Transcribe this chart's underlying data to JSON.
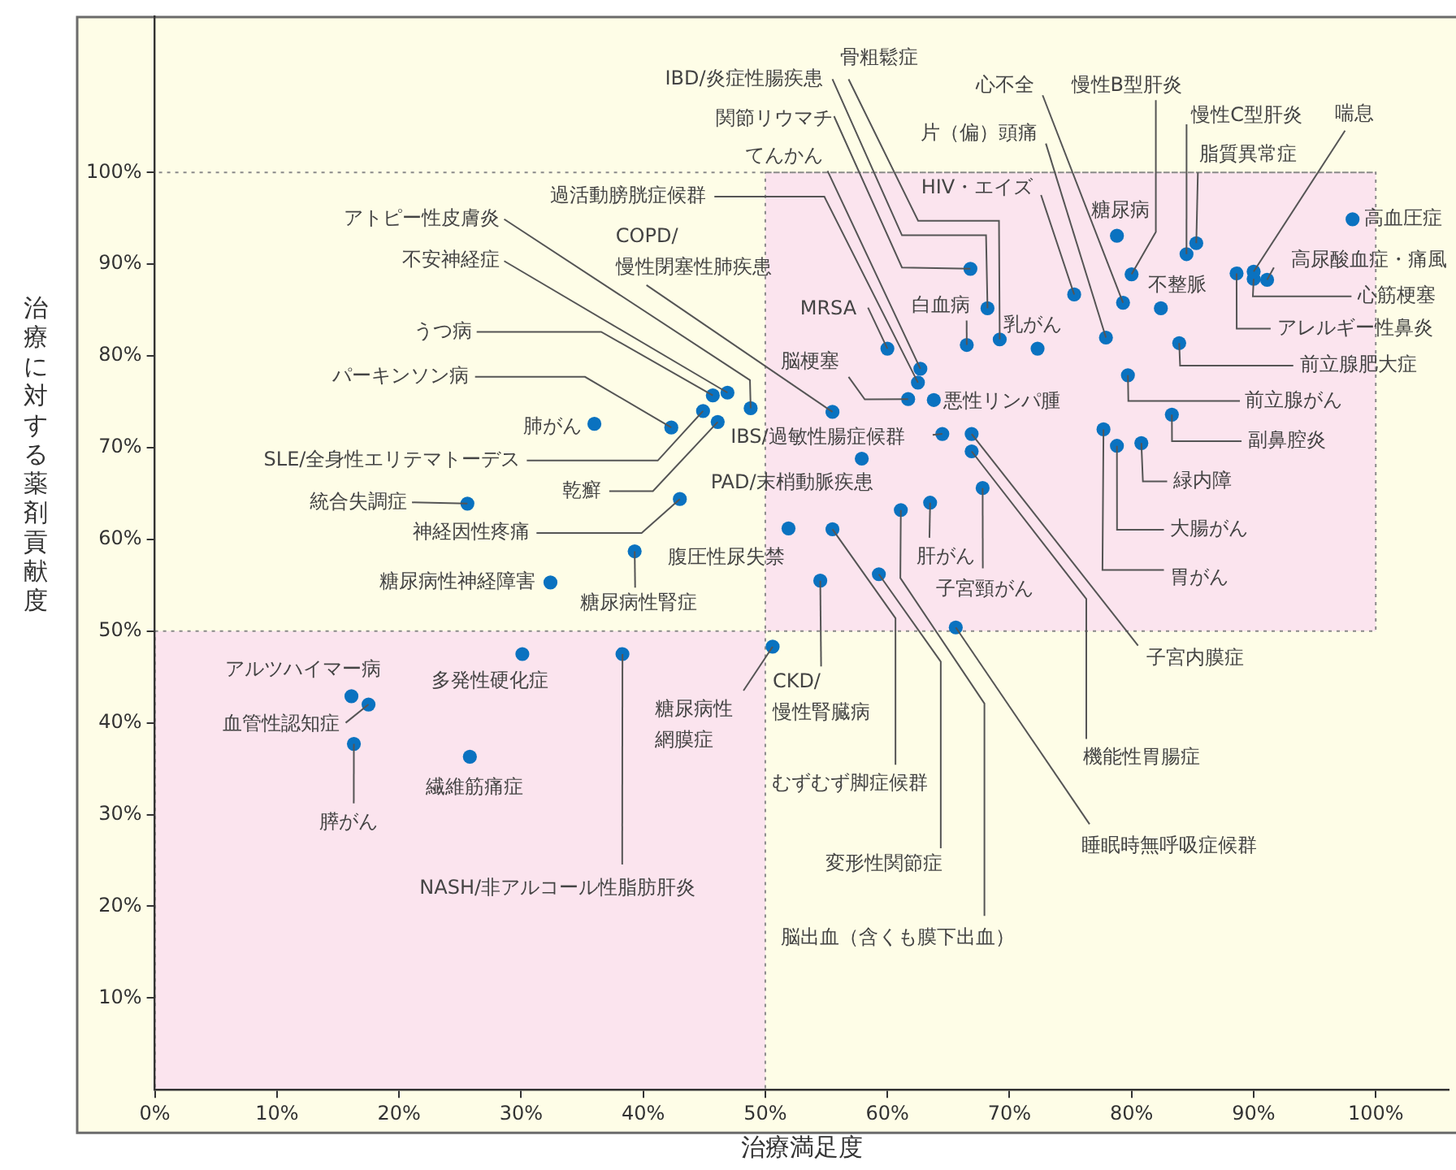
{
  "chart_data": {
    "type": "scatter",
    "xlabel": "治療満足度",
    "ylabel": "治療に対する薬剤貢献度",
    "xlim": [
      0,
      106
    ],
    "ylim": [
      0,
      117
    ],
    "xticks": [
      {
        "value": 0,
        "label": "0%"
      },
      {
        "value": 10,
        "label": "10%"
      },
      {
        "value": 20,
        "label": "20%"
      },
      {
        "value": 30,
        "label": "30%"
      },
      {
        "value": 40,
        "label": "40%"
      },
      {
        "value": 50,
        "label": "50%"
      },
      {
        "value": 60,
        "label": "60%"
      },
      {
        "value": 70,
        "label": "70%"
      },
      {
        "value": 80,
        "label": "80%"
      },
      {
        "value": 90,
        "label": "90%"
      },
      {
        "value": 100,
        "label": "100%"
      }
    ],
    "yticks": [
      {
        "value": 10,
        "label": "10%"
      },
      {
        "value": 20,
        "label": "20%"
      },
      {
        "value": 30,
        "label": "30%"
      },
      {
        "value": 40,
        "label": "40%"
      },
      {
        "value": 50,
        "label": "50%"
      },
      {
        "value": 60,
        "label": "60%"
      },
      {
        "value": 70,
        "label": "70%"
      },
      {
        "value": 80,
        "label": "80%"
      },
      {
        "value": 90,
        "label": "90%"
      },
      {
        "value": 100,
        "label": "100%"
      }
    ],
    "marker": "circle",
    "color": "#0a72c0",
    "x": [
      98.1,
      91.1,
      90.0,
      88.6,
      90.0,
      85.3,
      84.5,
      80.0,
      79.3,
      77.9,
      78.8,
      82.4,
      75.3,
      69.2,
      68.2,
      66.8,
      62.7,
      62.5,
      55.5,
      48.8,
      46.9,
      45.7,
      42.3,
      36.0,
      44.9,
      46.1,
      25.6,
      43.0,
      32.4,
      39.3,
      51.9,
      64.5,
      57.9,
      61.7,
      63.8,
      60.0,
      66.5,
      72.3,
      83.9,
      79.7,
      83.3,
      80.8,
      78.8,
      77.7,
      66.9,
      66.9,
      67.8,
      63.5,
      65.6,
      61.1,
      59.3,
      55.5,
      54.5,
      50.6,
      38.3,
      30.1,
      16.1,
      17.5,
      16.3,
      25.8
    ],
    "values": [
      94.9,
      88.3,
      88.4,
      89.0,
      89.2,
      92.3,
      91.1,
      88.9,
      85.8,
      82.0,
      93.1,
      85.2,
      86.7,
      81.8,
      85.2,
      89.5,
      78.6,
      77.1,
      73.9,
      74.3,
      76.0,
      75.7,
      72.2,
      72.6,
      74.0,
      72.8,
      63.9,
      64.4,
      55.3,
      58.7,
      61.2,
      71.5,
      68.8,
      75.3,
      75.2,
      80.8,
      81.2,
      80.8,
      81.4,
      77.9,
      73.6,
      70.5,
      70.2,
      72.0,
      71.5,
      69.6,
      65.6,
      64.0,
      50.4,
      63.2,
      56.2,
      61.1,
      55.5,
      48.3,
      47.5,
      47.5,
      42.9,
      42.0,
      37.7,
      36.3
    ],
    "annotations": [
      {
        "text": "高血圧症",
        "x": 98.1,
        "y": 94.9
      },
      {
        "text": "高尿酸血症・痛風",
        "x": 91.1,
        "y": 88.3
      },
      {
        "text": "心筋梗塞",
        "x": 90.0,
        "y": 88.4
      },
      {
        "text": "アレルギー性鼻炎",
        "x": 88.6,
        "y": 89.0
      },
      {
        "text": "喘息",
        "x": 90.0,
        "y": 89.2
      },
      {
        "text": "脂質異常症",
        "x": 85.3,
        "y": 92.3
      },
      {
        "text": "慢性C型肝炎",
        "x": 84.5,
        "y": 91.1
      },
      {
        "text": "慢性B型肝炎",
        "x": 80.0,
        "y": 88.9
      },
      {
        "text": "心不全",
        "x": 79.3,
        "y": 85.8
      },
      {
        "text": "片（偏）頭痛",
        "x": 77.9,
        "y": 82.0
      },
      {
        "text": "糖尿病",
        "x": 78.8,
        "y": 93.1
      },
      {
        "text": "不整脈",
        "x": 82.4,
        "y": 85.2
      },
      {
        "text": "HIV・エイズ",
        "x": 75.3,
        "y": 86.7
      },
      {
        "text": "骨粗鬆症",
        "x": 69.2,
        "y": 81.8
      },
      {
        "text": "IBD/炎症性腸疾患",
        "x": 68.2,
        "y": 85.2
      },
      {
        "text": "関節リウマチ",
        "x": 66.8,
        "y": 89.5
      },
      {
        "text": "てんかん",
        "x": 62.7,
        "y": 78.6
      },
      {
        "text": "過活動膀胱症候群",
        "x": 62.5,
        "y": 77.1
      },
      {
        "text": "COPD/慢性閉塞性肺疾患",
        "x": 55.5,
        "y": 73.9
      },
      {
        "text": "アトピー性皮膚炎",
        "x": 48.8,
        "y": 74.3
      },
      {
        "text": "不安神経症",
        "x": 46.9,
        "y": 76.0
      },
      {
        "text": "うつ病",
        "x": 45.7,
        "y": 75.7
      },
      {
        "text": "パーキンソン病",
        "x": 42.3,
        "y": 72.2
      },
      {
        "text": "肺がん",
        "x": 36.0,
        "y": 72.6
      },
      {
        "text": "SLE/全身性エリテマトーデス",
        "x": 44.9,
        "y": 74.0
      },
      {
        "text": "乾癬",
        "x": 46.1,
        "y": 72.8
      },
      {
        "text": "統合失調症",
        "x": 25.6,
        "y": 63.9
      },
      {
        "text": "神経因性疼痛",
        "x": 43.0,
        "y": 64.4
      },
      {
        "text": "糖尿病性神経障害",
        "x": 32.4,
        "y": 55.3
      },
      {
        "text": "糖尿病性腎症",
        "x": 39.3,
        "y": 58.7
      },
      {
        "text": "腹圧性尿失禁",
        "x": 51.9,
        "y": 61.2
      },
      {
        "text": "IBS/過敏性腸症候群",
        "x": 64.5,
        "y": 71.5
      },
      {
        "text": "PAD/末梢動脈疾患",
        "x": 57.9,
        "y": 68.8
      },
      {
        "text": "脳梗塞",
        "x": 61.7,
        "y": 75.3
      },
      {
        "text": "悪性リンパ腫",
        "x": 63.8,
        "y": 75.2
      },
      {
        "text": "MRSA",
        "x": 60.0,
        "y": 80.8
      },
      {
        "text": "白血病",
        "x": 66.5,
        "y": 81.2
      },
      {
        "text": "乳がん",
        "x": 72.3,
        "y": 80.8
      },
      {
        "text": "前立腺肥大症",
        "x": 83.9,
        "y": 81.4
      },
      {
        "text": "前立腺がん",
        "x": 79.7,
        "y": 77.9
      },
      {
        "text": "副鼻腔炎",
        "x": 83.3,
        "y": 73.6
      },
      {
        "text": "緑内障",
        "x": 80.8,
        "y": 70.5
      },
      {
        "text": "大腸がん",
        "x": 78.8,
        "y": 70.2
      },
      {
        "text": "胃がん",
        "x": 77.7,
        "y": 72.0
      },
      {
        "text": "子宮内膜症",
        "x": 66.9,
        "y": 71.5
      },
      {
        "text": "機能性胃腸症",
        "x": 66.9,
        "y": 69.6
      },
      {
        "text": "子宮頸がん",
        "x": 67.8,
        "y": 65.6
      },
      {
        "text": "肝がん",
        "x": 63.5,
        "y": 64.0
      },
      {
        "text": "睡眠時無呼吸症候群",
        "x": 65.6,
        "y": 50.4
      },
      {
        "text": "脳出血（含くも膜下出血）",
        "x": 61.1,
        "y": 63.2
      },
      {
        "text": "変形性関節症",
        "x": 59.3,
        "y": 56.2
      },
      {
        "text": "むずむず脚症候群",
        "x": 55.5,
        "y": 61.1
      },
      {
        "text": "CKD/慢性腎臓病",
        "x": 54.5,
        "y": 55.5
      },
      {
        "text": "糖尿病性網膜症",
        "x": 50.6,
        "y": 48.3
      },
      {
        "text": "NASH/非アルコール性脂肪肝炎",
        "x": 38.3,
        "y": 47.5
      },
      {
        "text": "多発性硬化症",
        "x": 30.1,
        "y": 47.5
      },
      {
        "text": "アルツハイマー病",
        "x": 16.1,
        "y": 42.9
      },
      {
        "text": "血管性認知症",
        "x": 17.5,
        "y": 42.0
      },
      {
        "text": "膵がん",
        "x": 16.3,
        "y": 37.7
      },
      {
        "text": "繊維筋痛症",
        "x": 25.8,
        "y": 36.3
      }
    ],
    "bands": [
      {
        "axis": "x",
        "from": 50,
        "to": 100,
        "color": "#fbe4ee"
      },
      {
        "axis": "x",
        "from": 0,
        "to": 50,
        "color": "#fbe4ee"
      }
    ],
    "ref_lines": [
      {
        "axis": "y",
        "value": 100,
        "color": "#8a8a8a",
        "line_style": "dotted"
      }
    ]
  }
}
